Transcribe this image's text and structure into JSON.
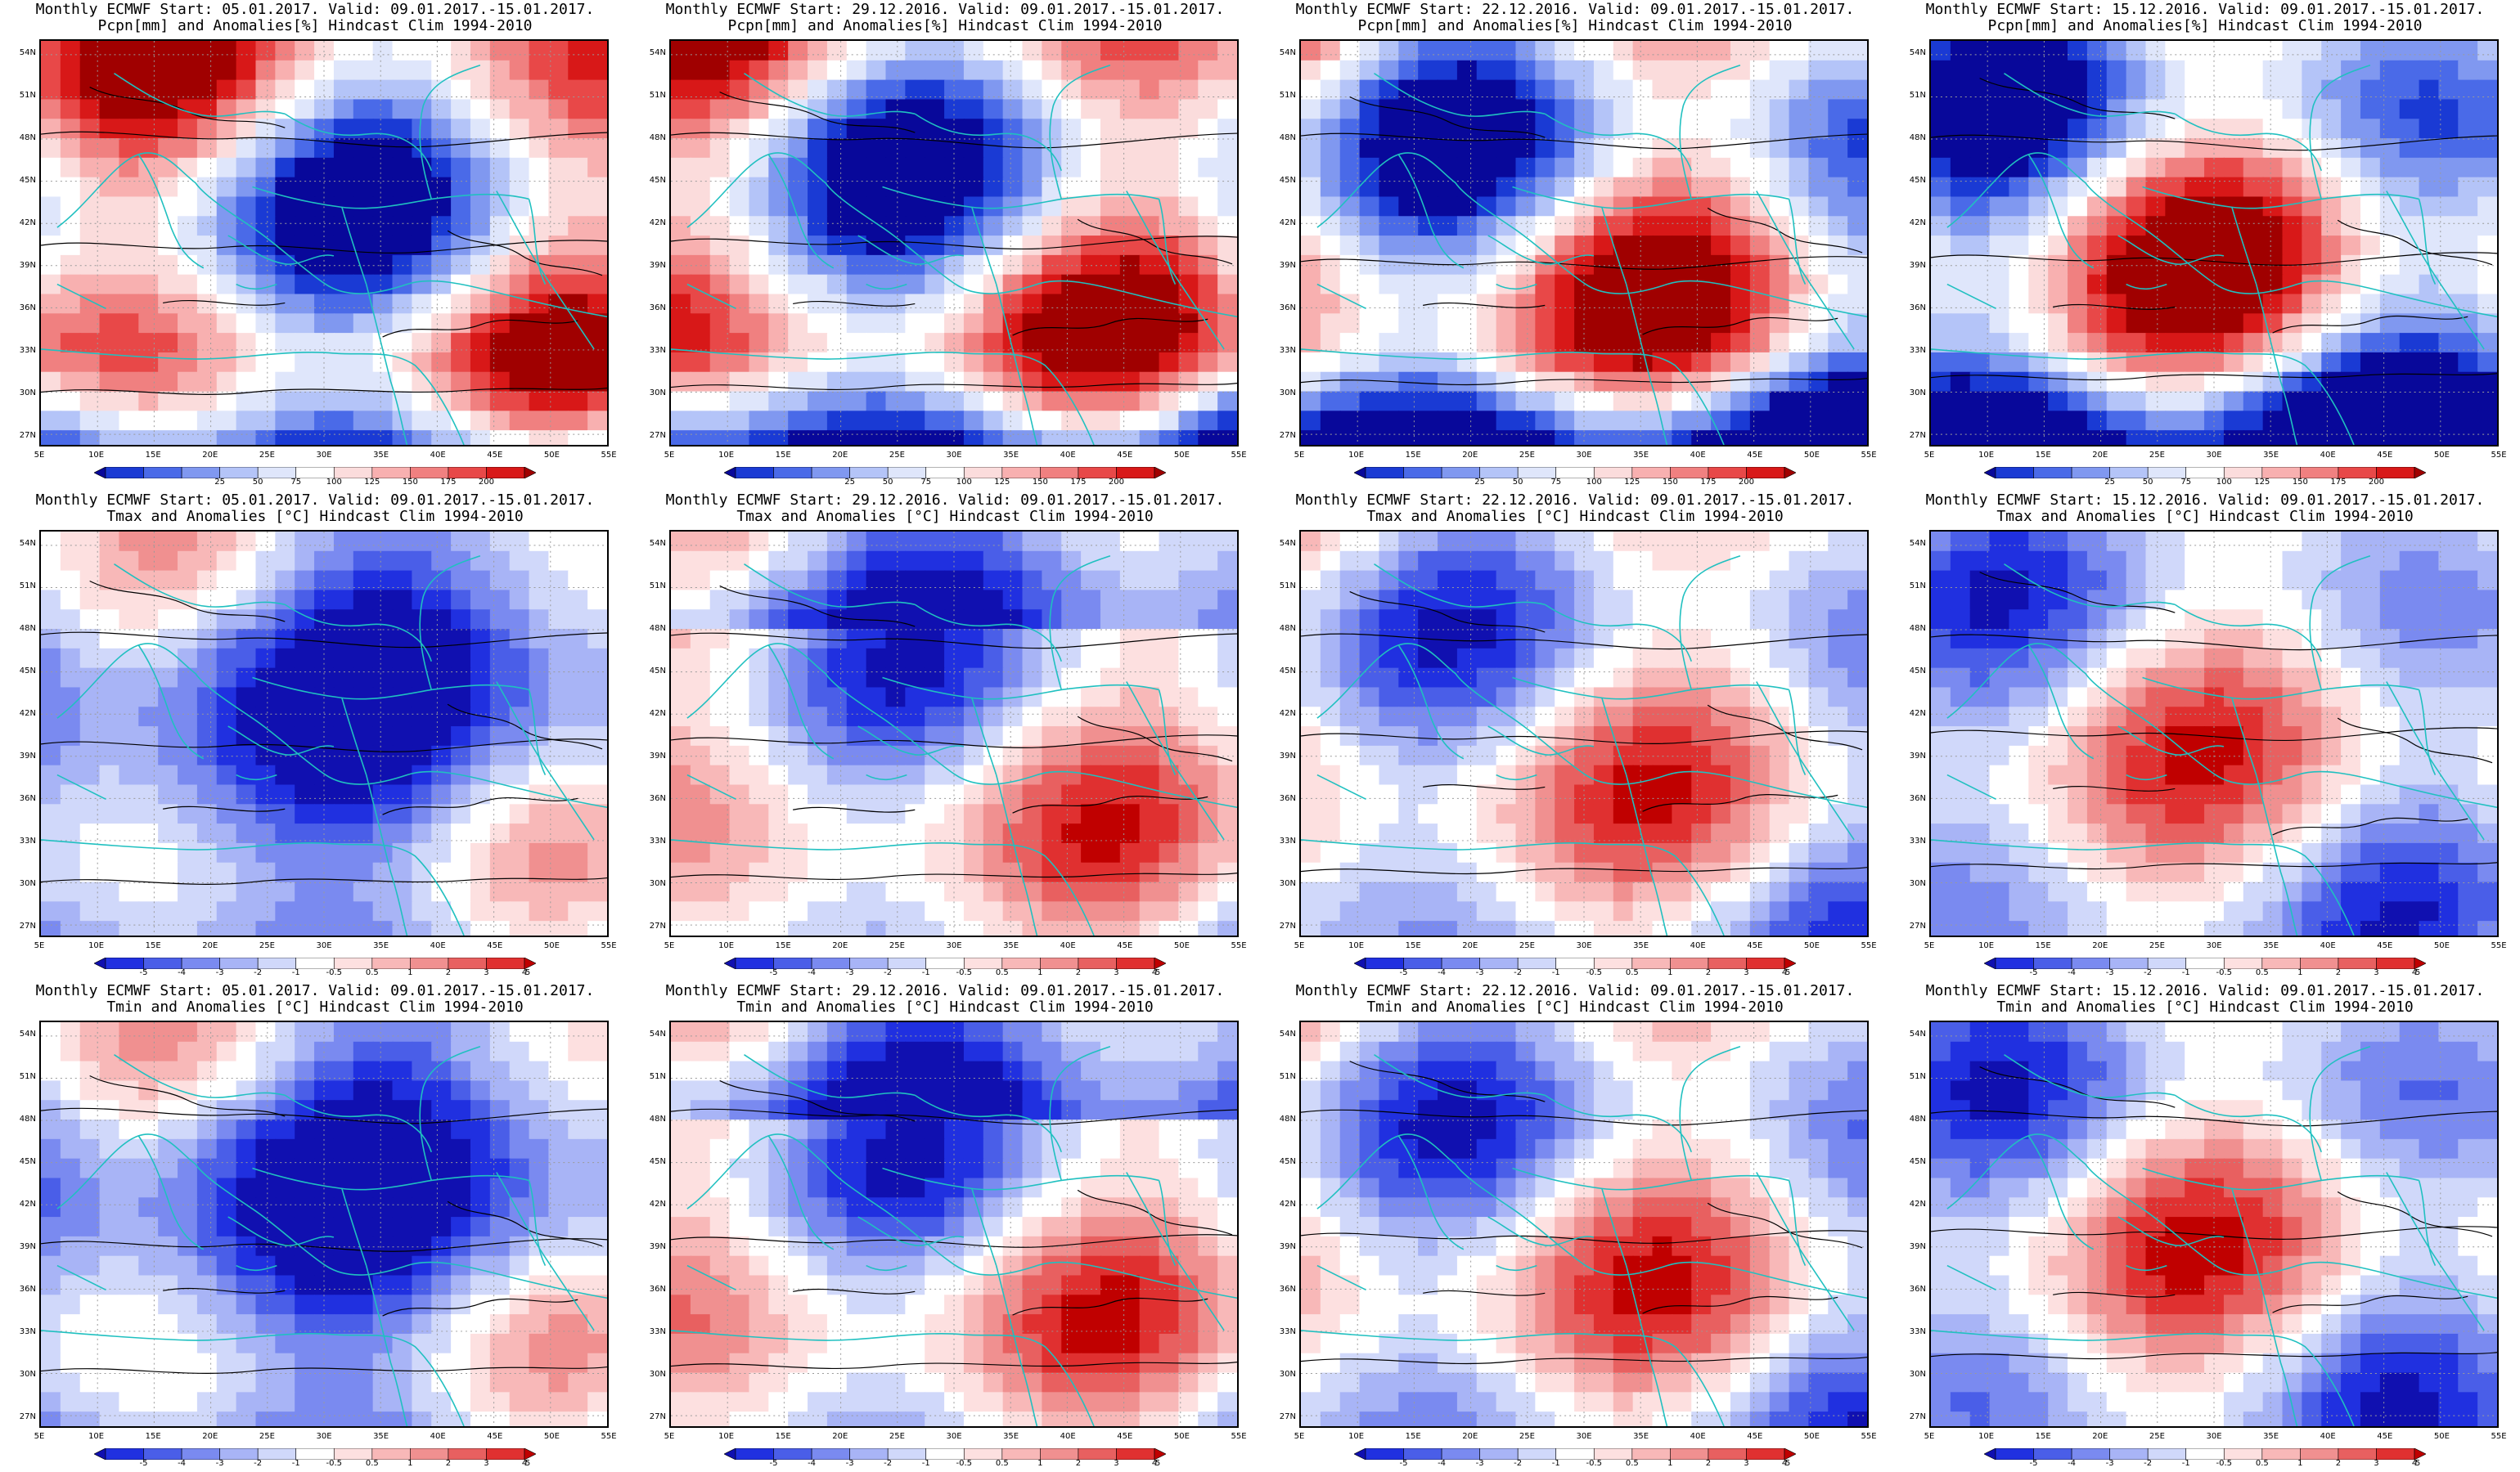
{
  "grid": {
    "rows": [
      {
        "line2": "Pcpn[mm] and Anomalies[%] Hindcast Clim 1994-2010",
        "field": "precip",
        "scale_colors": [
          "#08089a",
          "#1a3ad4",
          "#4a6ae8",
          "#8098f0",
          "#b4c4f8",
          "#dfe6fb",
          "#ffffff",
          "#fbdcdc",
          "#f8b0b0",
          "#f08080",
          "#e84848",
          "#d81818",
          "#a00000"
        ],
        "scale_labels": [
          "25",
          "50",
          "75",
          "100",
          "125",
          "150",
          "175",
          "200"
        ]
      },
      {
        "line2": "Tmax and Anomalies [°C] Hindcast Clim 1994-2010",
        "field": "tmax",
        "scale_colors": [
          "#1010b0",
          "#2030e0",
          "#4a5ee8",
          "#7a8af0",
          "#a8b4f6",
          "#d0d8fa",
          "#ffffff",
          "#fde0e0",
          "#f8b8b8",
          "#f09090",
          "#e86060",
          "#e03030",
          "#c00000"
        ],
        "scale_labels": [
          "-5",
          "-4",
          "-3",
          "-2",
          "-1",
          "-0.5",
          "0.5",
          "1",
          "2",
          "3",
          "4",
          "5"
        ]
      },
      {
        "line2": "Tmin and Anomalies [°C] Hindcast Clim 1994-2010",
        "field": "tmin",
        "scale_colors": [
          "#1010b0",
          "#2030e0",
          "#4a5ee8",
          "#7a8af0",
          "#a8b4f6",
          "#d0d8fa",
          "#ffffff",
          "#fde0e0",
          "#f8b8b8",
          "#f09090",
          "#e86060",
          "#e03030",
          "#c00000"
        ],
        "scale_labels": [
          "-5",
          "-4",
          "-3",
          "-2",
          "-1",
          "-0.5",
          "0.5",
          "1",
          "2",
          "3",
          "4",
          "5"
        ]
      }
    ],
    "columns": [
      {
        "line1": "Monthly ECMWF Start: 05.01.2017. Valid: 09.01.2017.-15.01.2017."
      },
      {
        "line1": "Monthly ECMWF Start: 29.12.2016. Valid: 09.01.2017.-15.01.2017."
      },
      {
        "line1": "Monthly ECMWF Start: 22.12.2016. Valid: 09.01.2017.-15.01.2017."
      },
      {
        "line1": "Monthly ECMWF Start: 15.12.2016. Valid: 09.01.2017.-15.01.2017."
      }
    ]
  },
  "axes": {
    "lat_labels": [
      "54N",
      "51N",
      "48N",
      "45N",
      "42N",
      "39N",
      "36N",
      "33N",
      "30N",
      "27N"
    ],
    "lon_labels": [
      "5E",
      "10E",
      "15E",
      "20E",
      "25E",
      "30E",
      "35E",
      "40E",
      "45E",
      "50E",
      "55E"
    ]
  },
  "colors": {
    "coast": "#20c0c0",
    "contour": "#000000",
    "grid": "#9a9a9a"
  }
}
